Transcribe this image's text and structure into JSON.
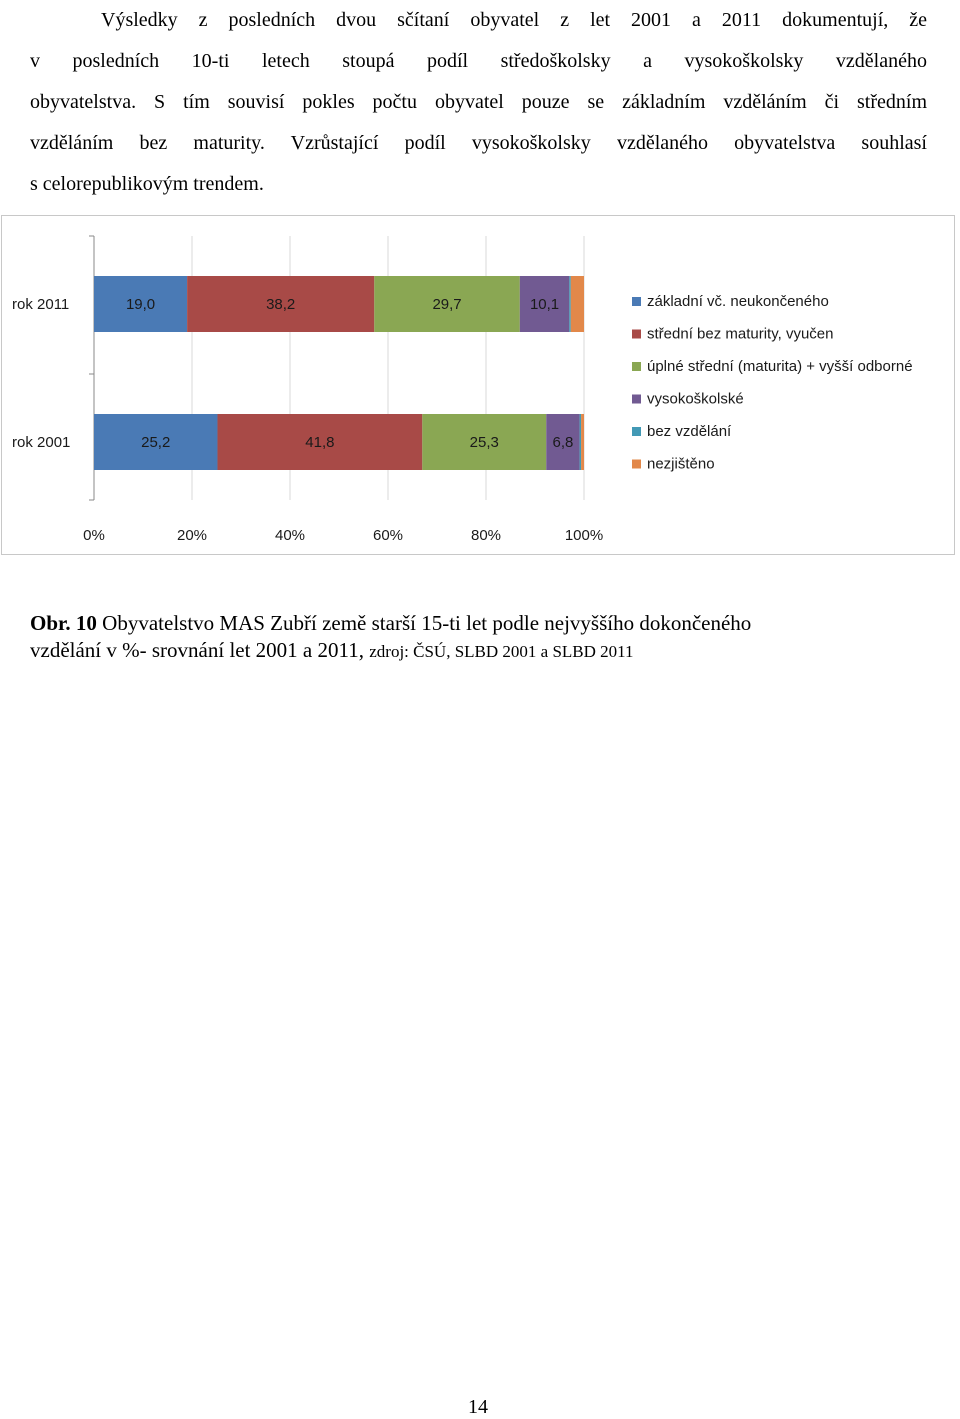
{
  "paragraph": {
    "lines": [
      "Výsledky z posledních dvou sčítaní obyvatel z let 2001 a 2011 dokumentují, že",
      "v posledních 10-ti letech stoupá podíl středoškolsky a vysokoškolsky vzdělaného",
      "obyvatelstva. S tím souvisí pokles počtu obyvatel pouze se základním vzděláním či středním",
      "vzděláním bez maturity. Vzrůstající podíl vysokoškolsky vzdělaného obyvatelstva souhlasí",
      "s celorepublikovým trendem."
    ]
  },
  "chart_data": {
    "type": "bar",
    "orientation": "horizontal",
    "stacked": true,
    "categories": [
      "rok 2011",
      "rok 2001"
    ],
    "series": [
      {
        "name": "základní vč. neukončeného",
        "color": "#4a7ab5",
        "values": [
          19.0,
          25.2
        ],
        "labels": [
          "19,0",
          "25,2"
        ]
      },
      {
        "name": "střední bez maturity, vyučen",
        "color": "#a84a47",
        "values": [
          38.2,
          41.8
        ],
        "labels": [
          "38,2",
          "41,8"
        ]
      },
      {
        "name": "úplné střední (maturita) + vyšší odborné",
        "color": "#8aa753",
        "values": [
          29.7,
          25.3
        ],
        "labels": [
          "29,7",
          "25,3"
        ]
      },
      {
        "name": "vysokoškolské",
        "color": "#715a92",
        "values": [
          10.1,
          6.8
        ],
        "labels": [
          "10,1",
          "6,8"
        ]
      },
      {
        "name": "bez vzdělání",
        "color": "#4299b5",
        "values": [
          0.3,
          0.3
        ],
        "labels": [
          "",
          ""
        ]
      },
      {
        "name": "nezjištěno",
        "color": "#e2884a",
        "values": [
          2.7,
          0.6
        ],
        "labels": [
          "",
          ""
        ]
      }
    ],
    "x_ticks": [
      "0%",
      "20%",
      "40%",
      "60%",
      "80%",
      "100%"
    ],
    "xlim": [
      0,
      100
    ],
    "grid": true,
    "legend_position": "right"
  },
  "caption": {
    "label": "Obr. 10",
    "text_line1": " Obyvatelstvo MAS Zubří země starší 15-ti let podle nejvyššího dokončeného",
    "text_line2": "vzdělání v %- srovnání let 2001 a 2011, ",
    "source": "zdroj: ČSÚ, SLBD 2001 a SLBD 2011"
  },
  "page_number": "14"
}
